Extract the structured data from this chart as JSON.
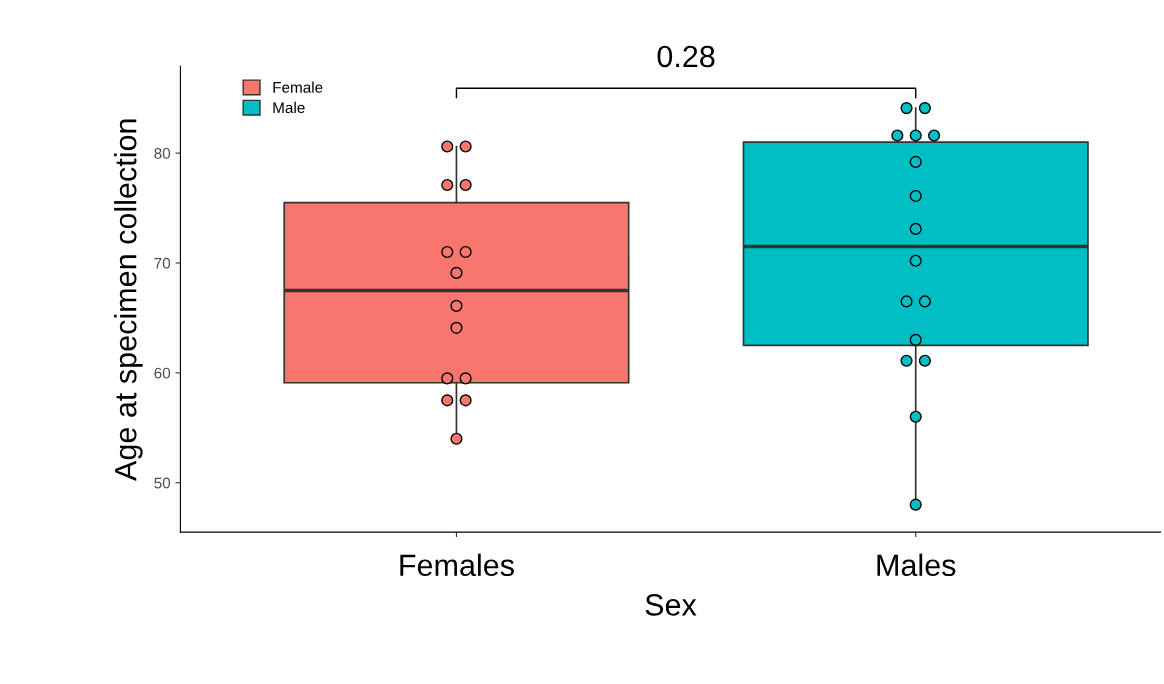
{
  "chart_data": {
    "type": "box",
    "xlabel": "Sex",
    "ylabel": "Age at specimen collection",
    "categories": [
      "Females",
      "Males"
    ],
    "ylim": [
      45.5,
      87.9
    ],
    "yticks": [
      50,
      60,
      70,
      80
    ],
    "grid": false,
    "legend": "top left",
    "annotations": [
      "0.28"
    ],
    "series": [
      {
        "name": "Female",
        "color": "#f8766d",
        "boxes": [
          {
            "low": 54.0,
            "q1": 59.1,
            "median": 67.5,
            "q3": 75.5,
            "high": 80.6
          },
          null
        ]
      },
      {
        "name": "Male",
        "color": "#00bfc4",
        "boxes": [
          null,
          {
            "low": 48.0,
            "q1": 62.5,
            "median": 71.5,
            "q3": 81.0,
            "high": 84.1
          }
        ]
      },
      {
        "type": "scatter",
        "color": "#f8766d",
        "marker": "circle",
        "x": [
          "Females",
          "Females",
          "Females",
          "Females",
          "Females",
          "Females",
          "Females",
          "Females",
          "Females",
          "Females",
          "Females",
          "Females",
          "Females",
          "Females"
        ],
        "values": [
          80.6,
          80.6,
          77.1,
          77.1,
          71.0,
          71.0,
          69.1,
          66.1,
          64.1,
          59.5,
          59.5,
          57.5,
          57.5,
          54.0
        ]
      },
      {
        "type": "scatter",
        "color": "#00bfc4",
        "marker": "circle",
        "x": [
          "Males",
          "Males",
          "Males",
          "Males",
          "Males",
          "Males",
          "Males",
          "Males",
          "Males",
          "Males",
          "Males",
          "Males",
          "Males",
          "Males",
          "Males",
          "Males"
        ],
        "values": [
          84.1,
          84.1,
          81.6,
          81.6,
          81.6,
          79.2,
          76.1,
          73.1,
          70.2,
          66.5,
          66.5,
          63.0,
          61.1,
          61.1,
          56.0,
          48.0
        ]
      }
    ]
  }
}
